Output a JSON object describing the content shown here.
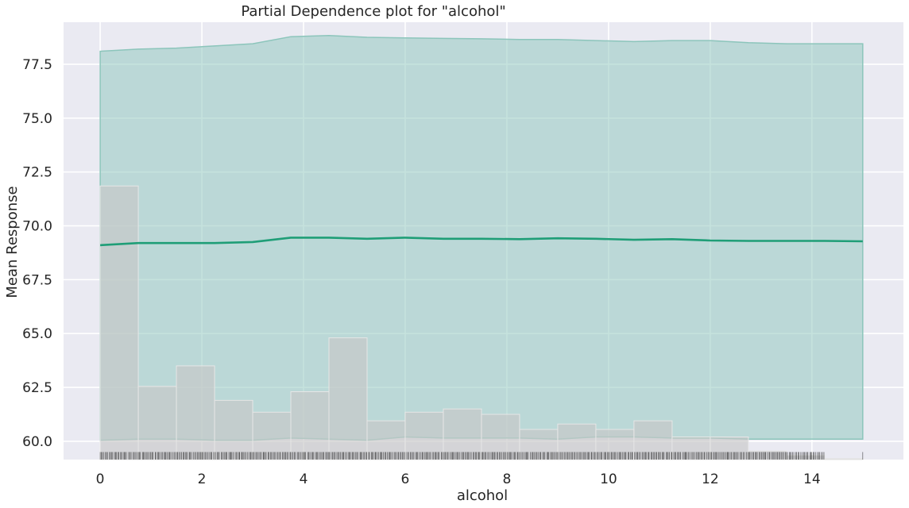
{
  "chart_data": {
    "type": "line",
    "title": "Partial Dependence plot for \"alcohol\"",
    "xlabel": "alcohol",
    "ylabel": "Mean Response",
    "xlim": [
      -0.72,
      15.8
    ],
    "ylim": [
      59.15,
      79.45
    ],
    "xticks": [
      0,
      2,
      4,
      6,
      8,
      10,
      12,
      14
    ],
    "yticks": [
      60.0,
      62.5,
      65.0,
      67.5,
      70.0,
      72.5,
      75.0,
      77.5
    ],
    "grid": true,
    "legend": "none",
    "colors": {
      "background": "#eaeaf2",
      "grid": "#ffffff",
      "line": "#1f9e77",
      "band": "#8cc5bb",
      "histogram": "#c8c8c8",
      "rug": "#000000"
    },
    "series": [
      {
        "x": [
          0.0,
          0.75,
          1.5,
          2.25,
          3.0,
          3.75,
          4.5,
          5.25,
          6.0,
          6.75,
          7.5,
          8.25,
          9.0,
          9.75,
          10.5,
          11.25,
          12.0,
          12.75,
          13.5,
          14.25,
          15.0
        ],
        "values": [
          69.1,
          69.2,
          69.2,
          69.2,
          69.25,
          69.45,
          69.45,
          69.4,
          69.45,
          69.4,
          69.4,
          69.38,
          69.42,
          69.4,
          69.35,
          69.38,
          69.32,
          69.3,
          69.3,
          69.3,
          69.28
        ],
        "band_upper": [
          78.1,
          78.2,
          78.25,
          78.35,
          78.45,
          78.78,
          78.83,
          78.75,
          78.72,
          78.7,
          78.68,
          78.65,
          78.65,
          78.6,
          78.55,
          78.6,
          78.6,
          78.5,
          78.45,
          78.45,
          78.45
        ],
        "band_lower": [
          60.05,
          60.1,
          60.1,
          60.05,
          60.05,
          60.15,
          60.1,
          60.05,
          60.2,
          60.15,
          60.15,
          60.15,
          60.1,
          60.2,
          60.2,
          60.15,
          60.15,
          60.1,
          60.1,
          60.1,
          60.1
        ]
      }
    ],
    "histogram": {
      "bin_width": 0.75,
      "bin_starts": [
        0.0,
        0.75,
        1.5,
        2.25,
        3.0,
        3.75,
        4.5,
        5.25,
        6.0,
        6.75,
        7.5,
        8.25,
        9.0,
        9.75,
        10.5,
        11.25,
        12.0,
        12.75,
        13.5,
        14.25
      ],
      "heights": [
        71.85,
        62.55,
        63.5,
        61.9,
        61.35,
        62.3,
        64.8,
        60.95,
        61.35,
        61.5,
        61.25,
        60.55,
        60.8,
        60.55,
        60.95,
        60.2,
        60.2,
        59.55,
        59.35,
        59.2
      ]
    },
    "rug": {
      "y_bottom": 59.15,
      "y_top": 59.5,
      "x_min": 0.0,
      "x_max": 14.25,
      "extra_x": [
        15.0
      ]
    }
  }
}
